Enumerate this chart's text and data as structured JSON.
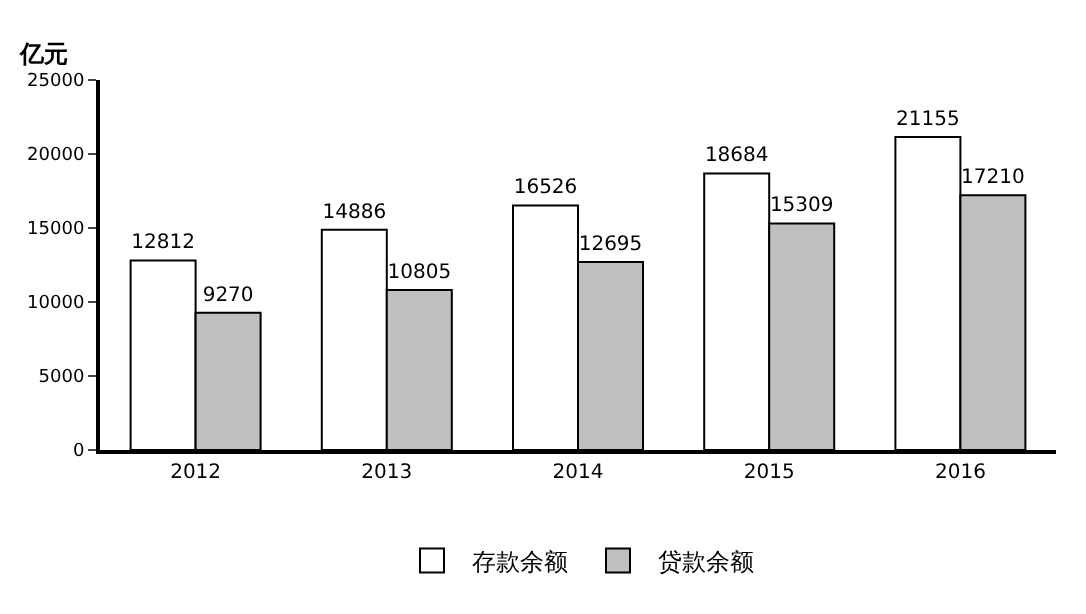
{
  "chart_data": {
    "type": "bar",
    "ylabel": "亿元",
    "categories": [
      "2012",
      "2013",
      "2014",
      "2015",
      "2016"
    ],
    "series": [
      {
        "name": "存款余额",
        "color": "#ffffff",
        "values": [
          12812,
          14886,
          16526,
          18684,
          21155
        ]
      },
      {
        "name": "贷款余额",
        "color": "#c0c0c0",
        "values": [
          9270,
          10805,
          12695,
          15309,
          17210
        ]
      }
    ],
    "ylim": [
      0,
      25000
    ],
    "yticks": [
      0,
      5000,
      10000,
      15000,
      20000,
      25000
    ],
    "legend": "bottom",
    "data_labels": true
  }
}
